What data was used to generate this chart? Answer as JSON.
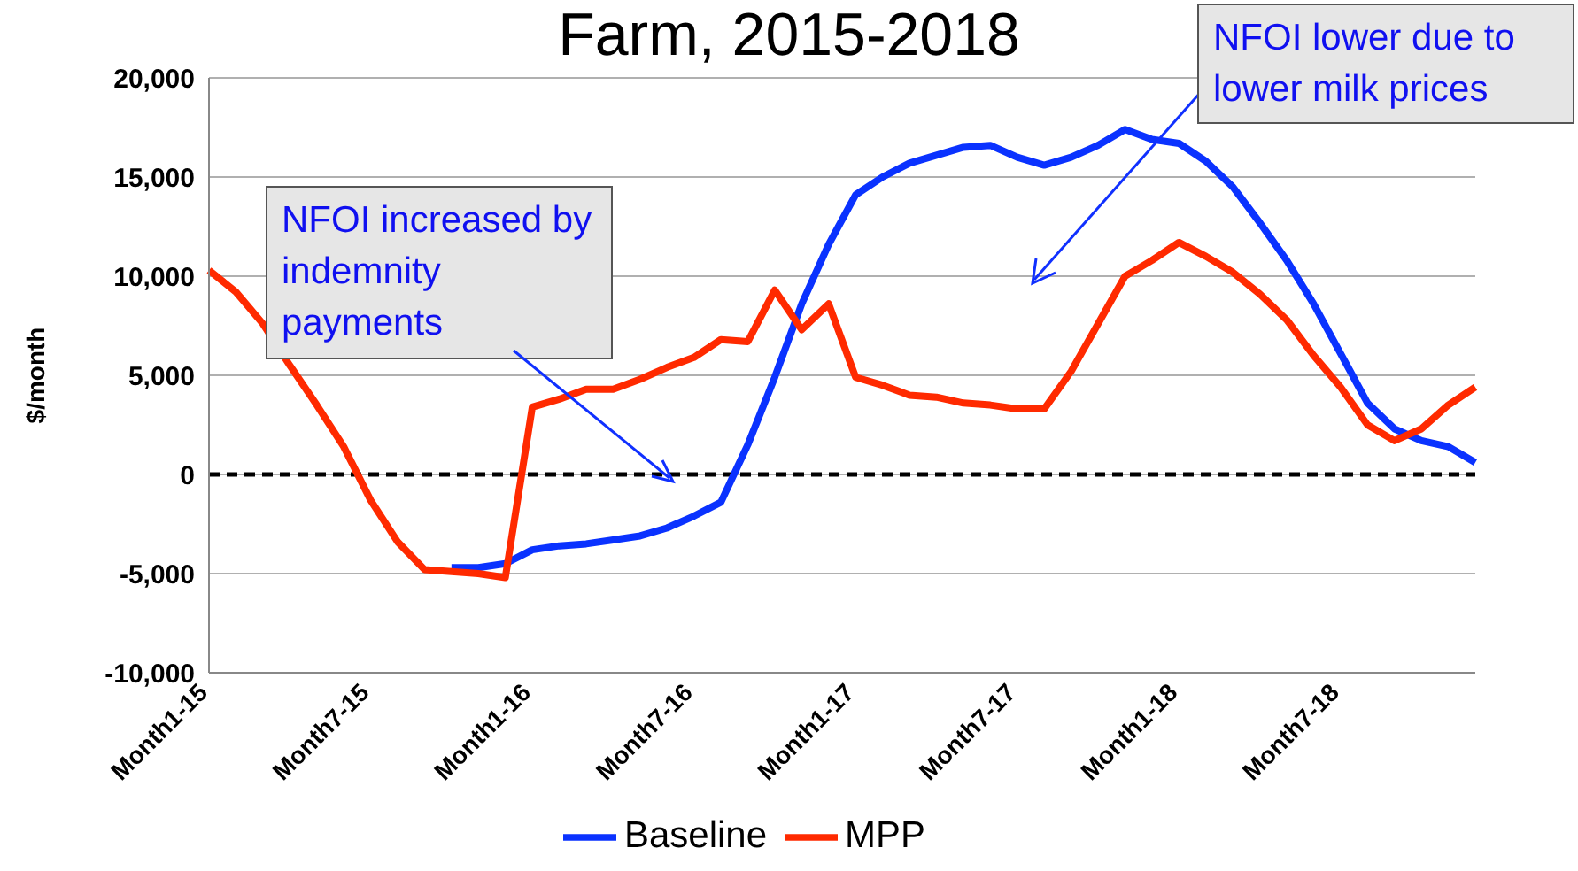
{
  "chart_data": {
    "type": "line",
    "title": "Farm, 2015-2018",
    "ylabel": "$/month",
    "categories": [
      "Month1-15",
      null,
      null,
      null,
      null,
      null,
      "Month7-15",
      null,
      null,
      null,
      null,
      null,
      "Month1-16",
      null,
      null,
      null,
      null,
      null,
      "Month7-16",
      null,
      null,
      null,
      null,
      null,
      "Month1-17",
      null,
      null,
      null,
      null,
      null,
      "Month7-17",
      null,
      null,
      null,
      null,
      null,
      "Month1-18",
      null,
      null,
      null,
      null,
      null,
      "Month7-18",
      null,
      null,
      null,
      null,
      null
    ],
    "series": [
      {
        "name": "Baseline",
        "color": "#0a32ff",
        "values": [
          null,
          null,
          null,
          null,
          null,
          null,
          null,
          null,
          null,
          -4700,
          -4700,
          -4500,
          -3800,
          -3600,
          -3500,
          -3300,
          -3100,
          -2700,
          -2100,
          -1400,
          1500,
          4900,
          8600,
          11600,
          14100,
          15000,
          15700,
          16100,
          16500,
          16600,
          16000,
          15600,
          16000,
          16600,
          17400,
          16900,
          16700,
          15800,
          14500,
          12700,
          10800,
          8600,
          6100,
          3600,
          2300,
          1700,
          1400,
          600
        ]
      },
      {
        "name": "MPP",
        "color": "#ff2a00",
        "values": [
          10300,
          9200,
          7600,
          5500,
          3500,
          1400,
          -1300,
          -3400,
          -4800,
          -4900,
          -5000,
          -5200,
          3400,
          3800,
          4300,
          4300,
          4800,
          5400,
          5900,
          6800,
          6700,
          9300,
          7300,
          8600,
          4900,
          4500,
          4000,
          3900,
          3600,
          3500,
          3300,
          3300,
          5200,
          7600,
          10000,
          10800,
          11700,
          11000,
          10200,
          9100,
          7800,
          6000,
          4400,
          2500,
          1700,
          2300,
          3500,
          4400
        ]
      }
    ],
    "ylim": [
      -10000,
      20000
    ],
    "yticks": [
      {
        "value": -10000,
        "label": "-10,000"
      },
      {
        "value": -5000,
        "label": "-5,000"
      },
      0,
      {
        "value": 5000,
        "label": "5,000"
      },
      {
        "value": 10000,
        "label": "10,000"
      },
      {
        "value": 15000,
        "label": "15,000"
      },
      {
        "value": 20000,
        "label": "20,000"
      }
    ],
    "grid": "y",
    "legend": "bottom",
    "marker": "none",
    "line_style": "solid",
    "ref_lines": [
      {
        "axis": "y",
        "value": 0,
        "color": "#000000",
        "line_style": "dashed"
      }
    ],
    "annotations": [
      "NFOI increased by indemnity payments",
      "NFOI lower due to lower milk prices"
    ]
  }
}
